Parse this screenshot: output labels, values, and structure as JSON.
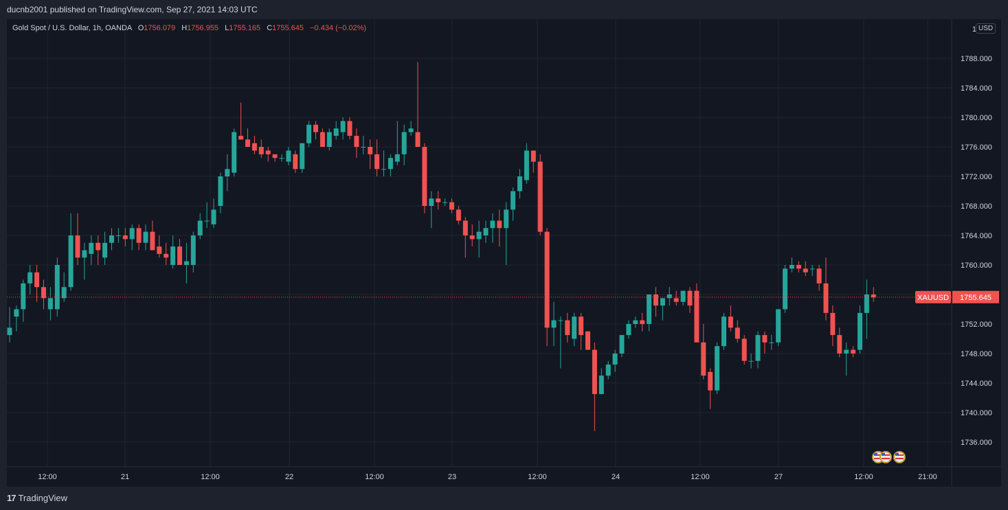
{
  "header": {
    "published": "ducnb2001 published on TradingView.com, Sep 27, 2021 14:03 UTC"
  },
  "legend": {
    "symbol": "Gold Spot / U.S. Dollar, 1h, OANDA",
    "o_label": "O",
    "o_value": "1756.079",
    "h_label": "H",
    "h_value": "1756.955",
    "l_label": "L",
    "l_value": "1755.165",
    "c_label": "C",
    "c_value": "1755.645",
    "change": "−0.434 (−0.02%)"
  },
  "currency_button": "USD",
  "footer": {
    "brand": "TradingView",
    "logo_mark": "17"
  },
  "colors": {
    "up": "#26a69a",
    "down": "#ef5350",
    "bg": "#131722",
    "grid": "#1f2430",
    "text": "#d1d4dc"
  },
  "chart_data": {
    "type": "candlestick",
    "symbol": "XAUUSD",
    "interval": "1h",
    "last_price": 1755.645,
    "last_price_label": "1755.645",
    "ylim": [
      1732.0,
      1792.0
    ],
    "y_ticks": [
      "1736.000",
      "1740.000",
      "1744.000",
      "1748.000",
      "1752.000",
      "1756.000",
      "1760.000",
      "1764.000",
      "1768.000",
      "1772.000",
      "1776.000",
      "1780.000",
      "1784.000",
      "1788.000",
      "17"
    ],
    "x_ticks": [
      "12:00",
      "21",
      "12:00",
      "22",
      "12:00",
      "23",
      "12:00",
      "24",
      "12:00",
      "27",
      "12:00",
      "21:00"
    ],
    "candles": [
      [
        1750.5,
        1754.3,
        1749.5,
        1751.5
      ],
      [
        1753.0,
        1754.5,
        1751.0,
        1754.0
      ],
      [
        1754.0,
        1758.0,
        1752.3,
        1757.5
      ],
      [
        1757.5,
        1760.0,
        1756.0,
        1759.0
      ],
      [
        1759.0,
        1760.0,
        1755.0,
        1757.0
      ],
      [
        1757.0,
        1758.0,
        1754.0,
        1755.5
      ],
      [
        1754.0,
        1757.0,
        1752.5,
        1755.5
      ],
      [
        1754.0,
        1761.0,
        1753.0,
        1760.0
      ],
      [
        1755.5,
        1759.0,
        1755.0,
        1757.0
      ],
      [
        1757.0,
        1767.0,
        1756.5,
        1764.0
      ],
      [
        1764.0,
        1767.0,
        1760.0,
        1761.0
      ],
      [
        1761.0,
        1763.0,
        1758.0,
        1762.0
      ],
      [
        1761.5,
        1764.0,
        1760.0,
        1763.0
      ],
      [
        1763.0,
        1764.0,
        1760.0,
        1762.0
      ],
      [
        1761.0,
        1764.5,
        1760.0,
        1763.0
      ],
      [
        1763.0,
        1765.0,
        1762.0,
        1764.0
      ],
      [
        1764.0,
        1765.0,
        1763.0,
        1764.0
      ],
      [
        1764.0,
        1765.0,
        1762.5,
        1763.5
      ],
      [
        1763.5,
        1765.5,
        1762.0,
        1765.0
      ],
      [
        1765.0,
        1765.5,
        1762.0,
        1763.0
      ],
      [
        1763.0,
        1765.5,
        1762.0,
        1764.5
      ],
      [
        1764.5,
        1766.0,
        1762.0,
        1762.0
      ],
      [
        1762.5,
        1764.0,
        1761.0,
        1761.5
      ],
      [
        1761.5,
        1763.0,
        1760.0,
        1761.0
      ],
      [
        1760.0,
        1764.0,
        1759.5,
        1762.5
      ],
      [
        1762.5,
        1763.5,
        1760.0,
        1760.0
      ],
      [
        1760.0,
        1763.0,
        1757.5,
        1760.5
      ],
      [
        1760.0,
        1764.5,
        1759.0,
        1764.0
      ],
      [
        1764.0,
        1767.0,
        1763.5,
        1766.0
      ],
      [
        1766.0,
        1768.5,
        1765.0,
        1766.0
      ],
      [
        1765.5,
        1769.0,
        1765.0,
        1767.5
      ],
      [
        1768.0,
        1772.5,
        1767.0,
        1772.0
      ],
      [
        1772.0,
        1775.0,
        1770.0,
        1773.0
      ],
      [
        1772.5,
        1778.5,
        1772.0,
        1778.0
      ],
      [
        1777.5,
        1782.0,
        1777.0,
        1777.0
      ],
      [
        1777.0,
        1778.5,
        1776.0,
        1776.0
      ],
      [
        1776.5,
        1777.5,
        1775.0,
        1775.5
      ],
      [
        1776.0,
        1777.0,
        1774.5,
        1775.0
      ],
      [
        1775.5,
        1776.0,
        1774.0,
        1775.0
      ],
      [
        1775.0,
        1775.0,
        1774.0,
        1774.5
      ],
      [
        1774.5,
        1775.0,
        1774.0,
        1774.5
      ],
      [
        1774.0,
        1776.0,
        1773.5,
        1775.5
      ],
      [
        1775.0,
        1775.5,
        1772.5,
        1773.0
      ],
      [
        1773.0,
        1776.5,
        1772.5,
        1776.5
      ],
      [
        1776.5,
        1779.5,
        1776.0,
        1779.0
      ],
      [
        1779.0,
        1779.5,
        1777.0,
        1778.0
      ],
      [
        1778.0,
        1778.5,
        1776.0,
        1776.0
      ],
      [
        1776.0,
        1778.5,
        1775.5,
        1778.0
      ],
      [
        1777.5,
        1779.5,
        1777.0,
        1778.5
      ],
      [
        1778.0,
        1780.0,
        1777.0,
        1779.5
      ],
      [
        1779.5,
        1780.0,
        1777.0,
        1777.5
      ],
      [
        1777.5,
        1778.5,
        1774.5,
        1776.0
      ],
      [
        1776.0,
        1777.5,
        1775.0,
        1776.0
      ],
      [
        1776.0,
        1777.0,
        1773.0,
        1775.0
      ],
      [
        1775.0,
        1777.0,
        1772.0,
        1773.0
      ],
      [
        1773.0,
        1775.5,
        1772.0,
        1773.0
      ],
      [
        1773.0,
        1775.0,
        1772.0,
        1774.5
      ],
      [
        1774.0,
        1779.5,
        1773.5,
        1775.0
      ],
      [
        1775.0,
        1779.0,
        1773.5,
        1778.0
      ],
      [
        1778.0,
        1779.5,
        1777.5,
        1778.5
      ],
      [
        1778.0,
        1787.5,
        1776.0,
        1776.0
      ],
      [
        1776.0,
        1776.5,
        1767.0,
        1768.0
      ],
      [
        1768.0,
        1770.0,
        1765.0,
        1769.0
      ],
      [
        1769.0,
        1770.0,
        1767.5,
        1768.5
      ],
      [
        1768.5,
        1769.0,
        1768.0,
        1768.5
      ],
      [
        1768.5,
        1769.0,
        1767.0,
        1767.5
      ],
      [
        1767.5,
        1768.0,
        1765.5,
        1766.0
      ],
      [
        1766.0,
        1766.5,
        1761.0,
        1764.0
      ],
      [
        1764.0,
        1765.5,
        1762.5,
        1763.5
      ],
      [
        1763.5,
        1766.0,
        1761.0,
        1764.5
      ],
      [
        1764.0,
        1766.0,
        1763.0,
        1765.0
      ],
      [
        1765.0,
        1767.0,
        1763.0,
        1766.0
      ],
      [
        1766.0,
        1767.5,
        1762.5,
        1765.0
      ],
      [
        1765.0,
        1768.5,
        1760.0,
        1767.5
      ],
      [
        1767.5,
        1770.5,
        1766.0,
        1770.0
      ],
      [
        1770.0,
        1773.0,
        1769.0,
        1772.0
      ],
      [
        1771.5,
        1776.5,
        1771.0,
        1775.5
      ],
      [
        1775.5,
        1775.5,
        1772.5,
        1774.0
      ],
      [
        1774.0,
        1775.0,
        1764.0,
        1764.5
      ],
      [
        1764.5,
        1765.0,
        1749.0,
        1751.5
      ],
      [
        1751.5,
        1755.0,
        1749.0,
        1752.5
      ],
      [
        1752.5,
        1753.0,
        1746.0,
        1752.5
      ],
      [
        1752.5,
        1753.5,
        1749.5,
        1750.5
      ],
      [
        1750.0,
        1753.5,
        1749.0,
        1753.0
      ],
      [
        1753.0,
        1753.5,
        1748.5,
        1750.5
      ],
      [
        1751.0,
        1751.0,
        1748.5,
        1748.5
      ],
      [
        1748.5,
        1749.5,
        1737.5,
        1742.5
      ],
      [
        1742.5,
        1746.0,
        1742.5,
        1745.0
      ],
      [
        1745.0,
        1747.0,
        1744.5,
        1746.5
      ],
      [
        1746.5,
        1748.5,
        1745.5,
        1748.0
      ],
      [
        1748.0,
        1750.5,
        1747.5,
        1750.5
      ],
      [
        1750.5,
        1752.5,
        1750.0,
        1752.0
      ],
      [
        1752.0,
        1753.0,
        1751.5,
        1752.5
      ],
      [
        1752.5,
        1753.5,
        1751.0,
        1752.0
      ],
      [
        1752.0,
        1756.0,
        1751.0,
        1756.0
      ],
      [
        1756.0,
        1757.0,
        1753.0,
        1754.5
      ],
      [
        1754.5,
        1755.5,
        1752.5,
        1755.5
      ],
      [
        1755.5,
        1757.0,
        1754.5,
        1756.0
      ],
      [
        1755.5,
        1756.5,
        1754.5,
        1755.0
      ],
      [
        1755.0,
        1756.0,
        1754.5,
        1756.5
      ],
      [
        1756.5,
        1757.0,
        1753.5,
        1754.5
      ],
      [
        1756.5,
        1757.5,
        1749.5,
        1749.5
      ],
      [
        1749.5,
        1752.0,
        1744.5,
        1745.0
      ],
      [
        1745.5,
        1746.0,
        1740.5,
        1743.0
      ],
      [
        1743.0,
        1749.5,
        1742.5,
        1749.0
      ],
      [
        1749.0,
        1753.5,
        1748.5,
        1753.0
      ],
      [
        1753.0,
        1754.5,
        1751.0,
        1751.5
      ],
      [
        1751.5,
        1752.5,
        1749.5,
        1750.0
      ],
      [
        1750.0,
        1750.5,
        1746.5,
        1747.0
      ],
      [
        1747.0,
        1748.0,
        1746.0,
        1747.0
      ],
      [
        1747.0,
        1751.0,
        1746.0,
        1750.5
      ],
      [
        1750.5,
        1751.0,
        1748.0,
        1749.5
      ],
      [
        1749.5,
        1750.5,
        1748.5,
        1749.5
      ],
      [
        1749.5,
        1754.0,
        1749.0,
        1754.0
      ],
      [
        1754.0,
        1760.0,
        1753.5,
        1759.5
      ],
      [
        1759.5,
        1761.0,
        1759.0,
        1760.0
      ],
      [
        1760.0,
        1760.5,
        1759.0,
        1759.5
      ],
      [
        1759.5,
        1760.5,
        1758.5,
        1759.0
      ],
      [
        1759.5,
        1760.0,
        1758.5,
        1759.5
      ],
      [
        1759.5,
        1760.0,
        1756.5,
        1757.5
      ],
      [
        1757.5,
        1761.0,
        1752.5,
        1753.5
      ],
      [
        1753.5,
        1754.5,
        1749.0,
        1750.5
      ],
      [
        1750.5,
        1751.5,
        1747.5,
        1748.0
      ],
      [
        1748.0,
        1749.5,
        1745.0,
        1748.5
      ],
      [
        1748.5,
        1749.0,
        1747.5,
        1748.0
      ],
      [
        1748.5,
        1754.5,
        1748.0,
        1753.5
      ],
      [
        1753.5,
        1758.0,
        1750.0,
        1756.0
      ],
      [
        1756.0,
        1757.0,
        1755.0,
        1755.6
      ]
    ]
  }
}
